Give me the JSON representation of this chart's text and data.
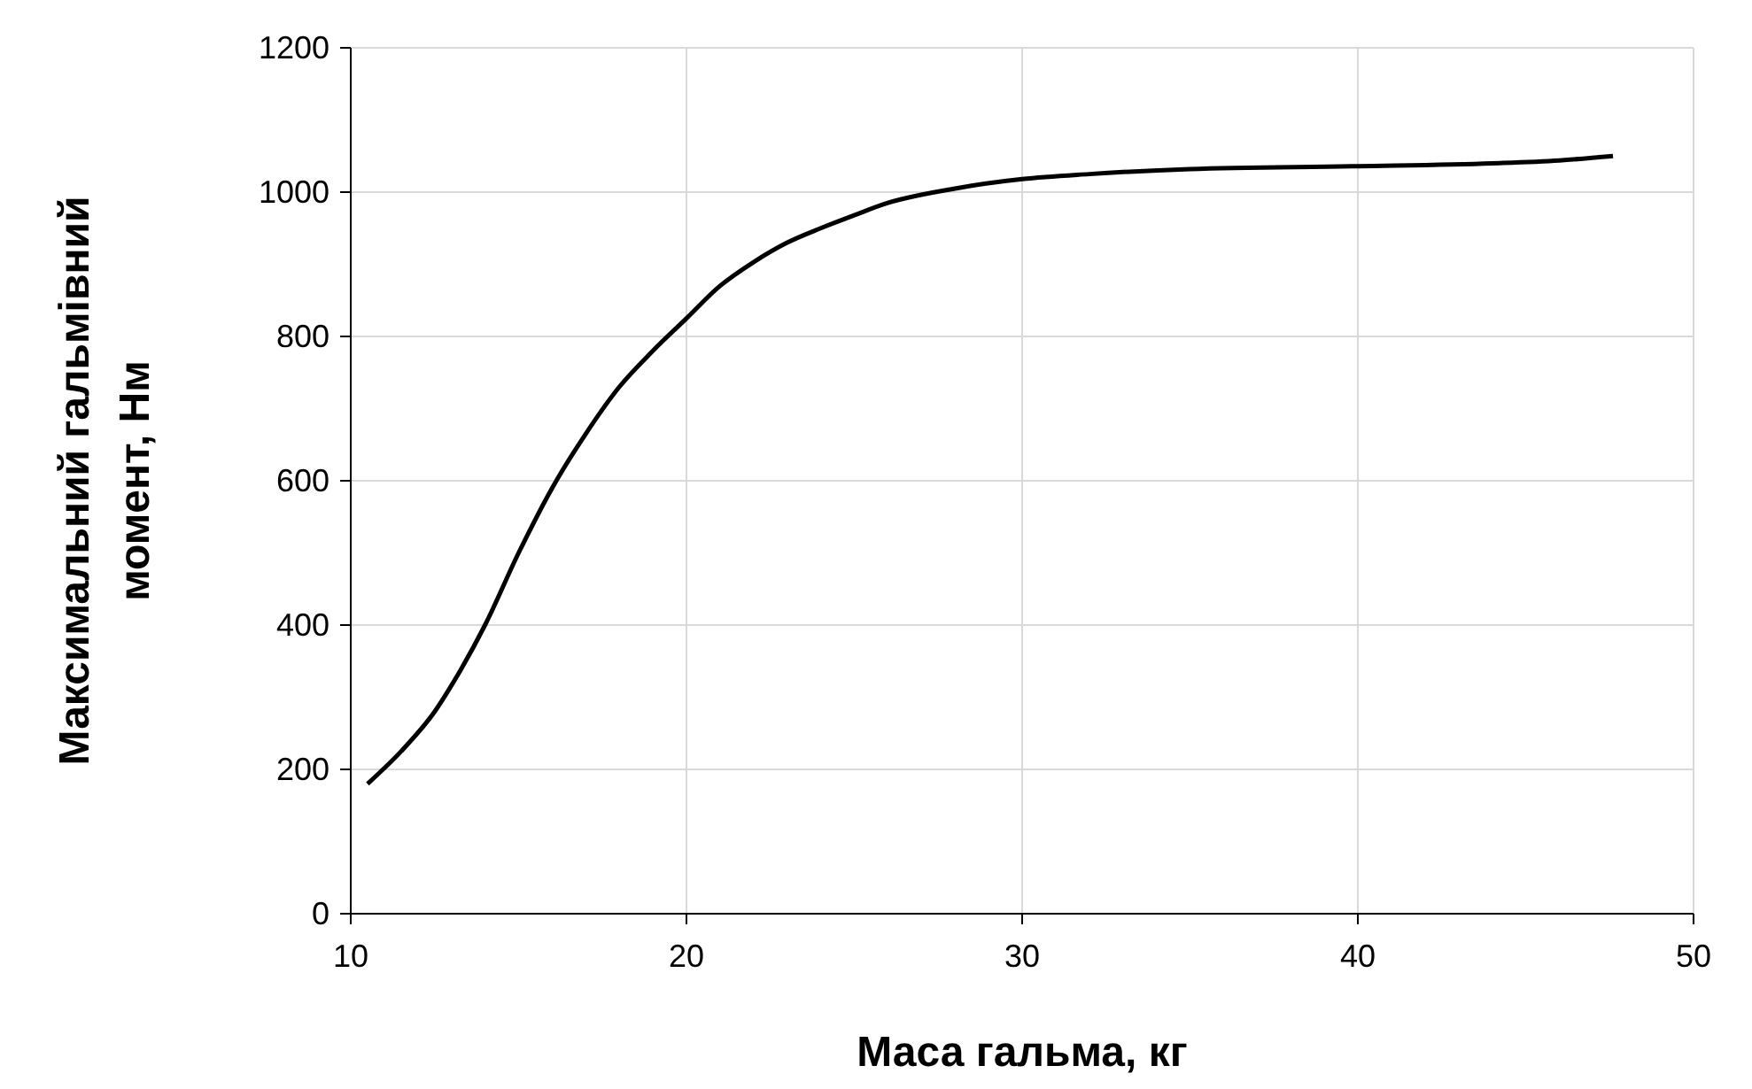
{
  "chart_data": {
    "type": "line",
    "xlabel": "Маса гальма, кг",
    "ylabel": "Максимальний гальмівний\nмомент, Нм",
    "xlim": [
      10,
      50
    ],
    "xticks": [
      10,
      20,
      30,
      40,
      50
    ],
    "ylim": [
      0,
      1200
    ],
    "yticks": [
      0,
      200,
      400,
      600,
      800,
      1000,
      1200
    ],
    "grid": true,
    "marker": "none",
    "line_style": "solid",
    "series": [
      {
        "color": "#000000",
        "x": [
          10.5,
          11.5,
          12.5,
          13.3,
          14,
          15,
          16,
          17,
          18,
          19,
          20,
          21,
          22,
          23,
          24,
          25,
          26,
          28,
          30,
          32,
          35,
          40,
          44,
          46,
          47.6
        ],
        "values": [
          180,
          225,
          280,
          340,
          400,
          500,
          590,
          665,
          730,
          780,
          825,
          870,
          903,
          930,
          950,
          968,
          985,
          1005,
          1018,
          1025,
          1032,
          1036,
          1040,
          1044,
          1050
        ]
      }
    ]
  }
}
